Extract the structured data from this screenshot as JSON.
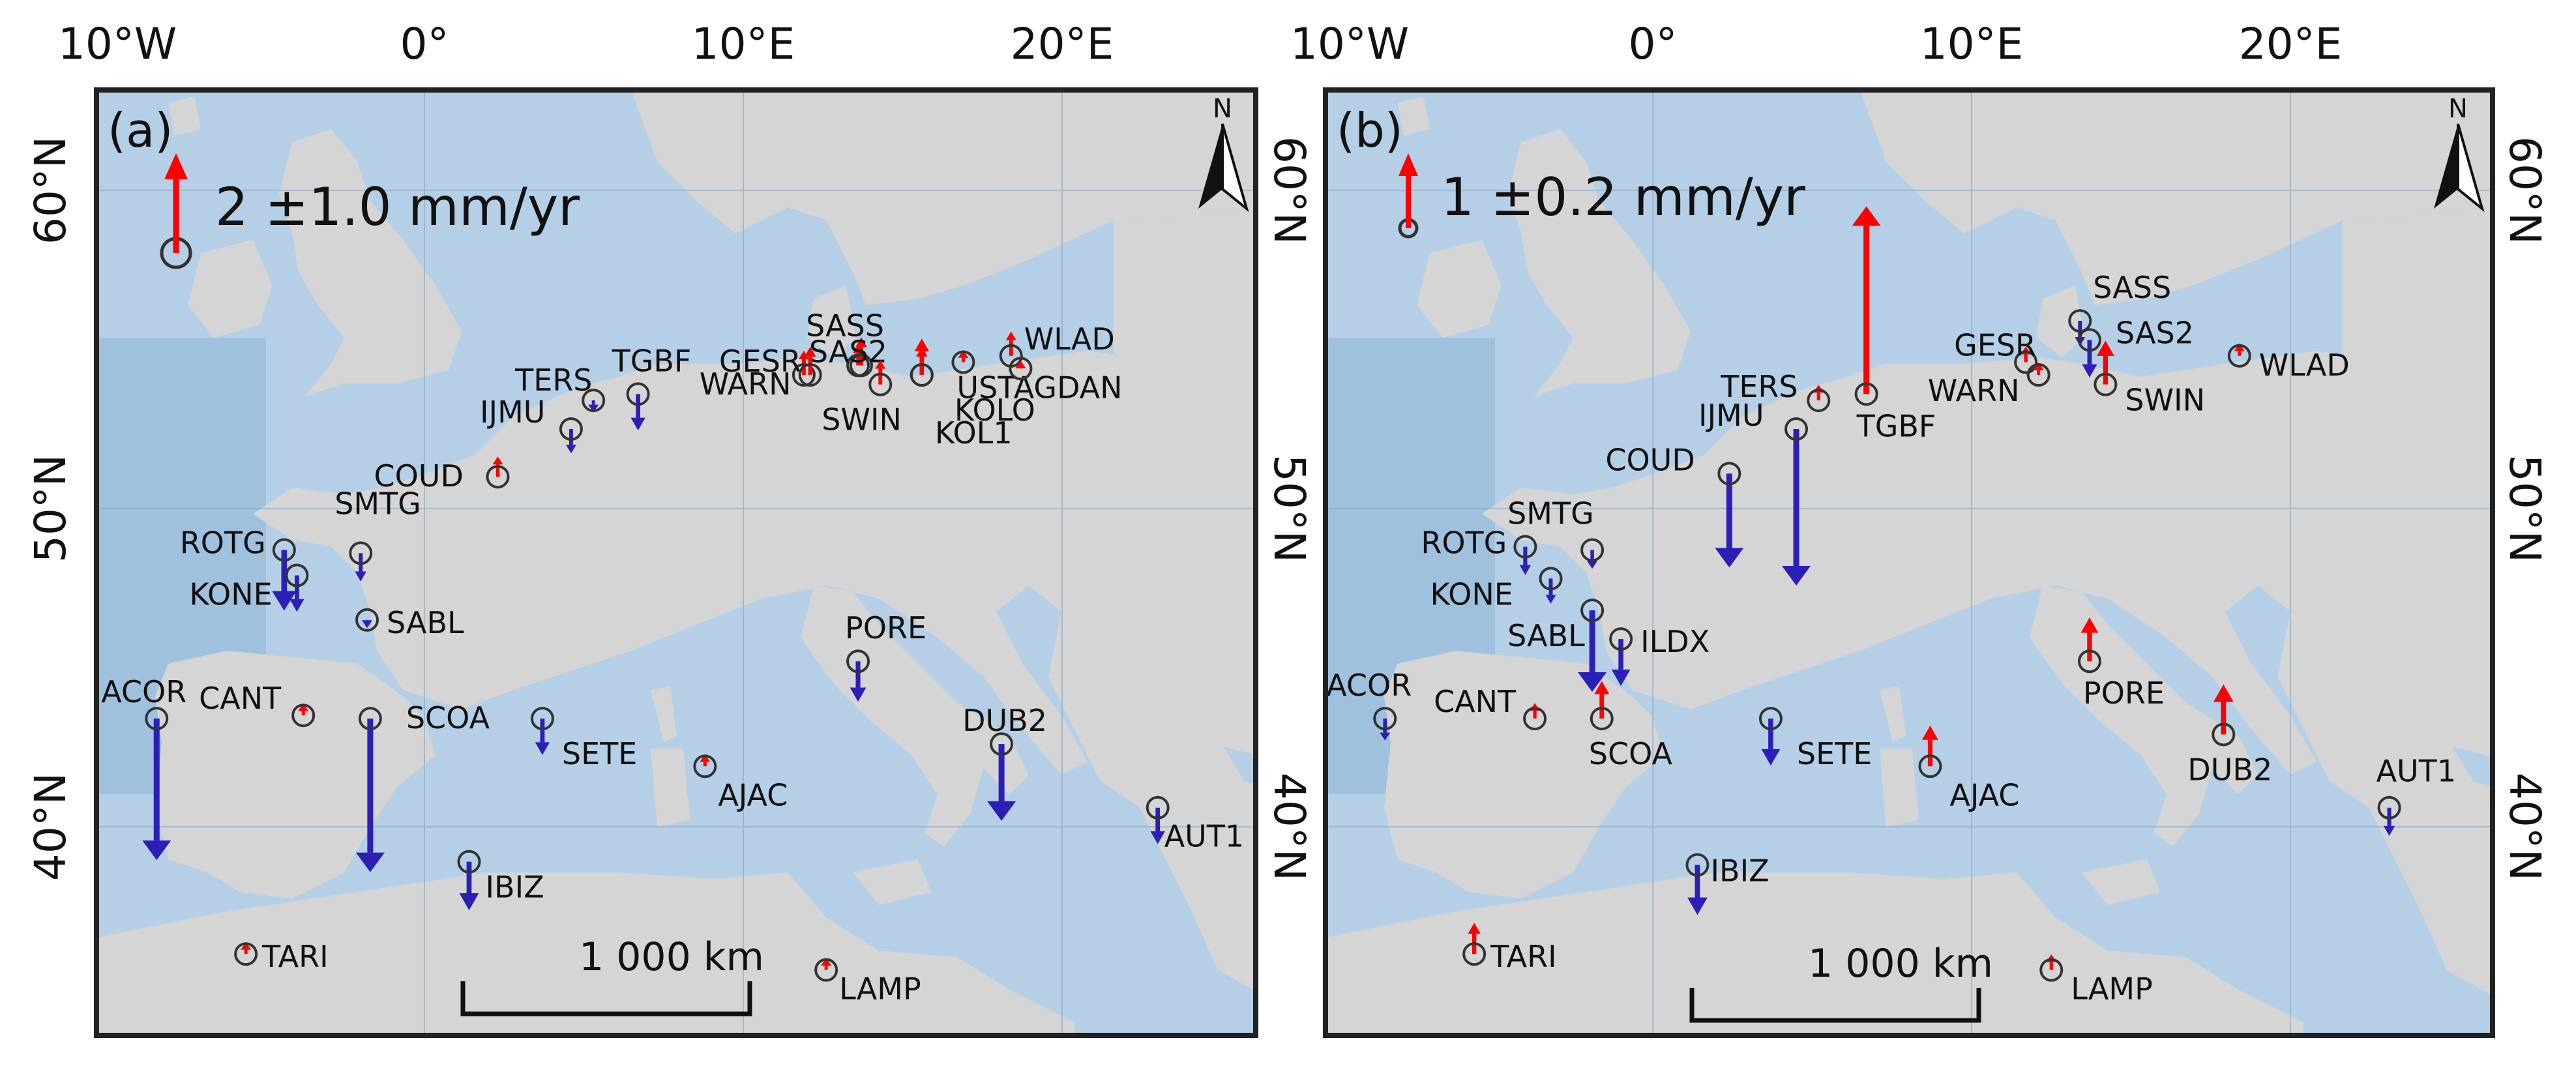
{
  "axes": {
    "lon_labels": [
      "10°W",
      "0°",
      "10°E",
      "20°E"
    ],
    "lat_labels": [
      "60°N",
      "50°N",
      "40°N"
    ]
  },
  "colors": {
    "uplift": "#ff0000",
    "subsidence": "#2b1fb8",
    "sea": "#b5d0e6",
    "land": "#d5d5d5",
    "frame": "#222222"
  },
  "panels": [
    {
      "label": "(a)",
      "legend": {
        "text": "2 ±1.0 mm/yr",
        "value": 2,
        "uncertainty": 1.0,
        "unit": "mm/yr"
      },
      "scalebar": "1 000 km",
      "north": "N",
      "stations": [
        {
          "name": "SASS",
          "lon": 13.6,
          "lat": 54.5,
          "rate": 0.5
        },
        {
          "name": "SAS2",
          "lon": 13.7,
          "lat": 54.5,
          "rate": 0.7
        },
        {
          "name": "GESR",
          "lon": 11.9,
          "lat": 54.2,
          "rate": 0.6
        },
        {
          "name": "WARN",
          "lon": 12.1,
          "lat": 54.2,
          "rate": 0.7
        },
        {
          "name": "TERS",
          "lon": 5.3,
          "lat": 53.4,
          "rate": -0.3
        },
        {
          "name": "TGBF",
          "lon": 6.7,
          "lat": 53.6,
          "rate": -0.9
        },
        {
          "name": "IJMU",
          "lon": 4.6,
          "lat": 52.5,
          "rate": -0.6
        },
        {
          "name": "SWIN",
          "lon": 14.3,
          "lat": 53.9,
          "rate": 0.6
        },
        {
          "name": "KOLO",
          "lon": 15.6,
          "lat": 54.2,
          "rate": 0.9
        },
        {
          "name": "KOL1",
          "lon": 15.6,
          "lat": 54.2,
          "rate": 0.7
        },
        {
          "name": "USTA",
          "lon": 16.9,
          "lat": 54.6,
          "rate": 0.3
        },
        {
          "name": "WLAD",
          "lon": 18.4,
          "lat": 54.8,
          "rate": 0.6
        },
        {
          "name": "GDAN",
          "lon": 18.7,
          "lat": 54.4,
          "rate": 0.2
        },
        {
          "name": "COUD",
          "lon": 2.3,
          "lat": 51.0,
          "rate": 0.5
        },
        {
          "name": "SMTG",
          "lon": -2.0,
          "lat": 48.6,
          "rate": -0.7
        },
        {
          "name": "ROTG",
          "lon": -4.4,
          "lat": 48.7,
          "rate": -1.5
        },
        {
          "name": "KONE",
          "lon": -4.0,
          "lat": 47.9,
          "rate": -0.9
        },
        {
          "name": "SABL",
          "lon": -1.8,
          "lat": 46.5,
          "rate": -0.2
        },
        {
          "name": "PORE",
          "lon": 13.6,
          "lat": 45.2,
          "rate": -1.0
        },
        {
          "name": "ACOR",
          "lon": -8.4,
          "lat": 43.4,
          "rate": -3.5
        },
        {
          "name": "CANT",
          "lon": -3.8,
          "lat": 43.5,
          "rate": 0.3
        },
        {
          "name": "SCOA",
          "lon": -1.7,
          "lat": 43.4,
          "rate": -3.8
        },
        {
          "name": "SETE",
          "lon": 3.7,
          "lat": 43.4,
          "rate": -0.9
        },
        {
          "name": "DUB2",
          "lon": 18.1,
          "lat": 42.6,
          "rate": -1.9
        },
        {
          "name": "AJAC",
          "lon": 8.8,
          "lat": 41.9,
          "rate": 0.3
        },
        {
          "name": "AUT1",
          "lon": 23.0,
          "lat": 40.6,
          "rate": -0.9
        },
        {
          "name": "IBIZ",
          "lon": 1.4,
          "lat": 38.9,
          "rate": -1.2
        },
        {
          "name": "TARI",
          "lon": -5.6,
          "lat": 36.0,
          "rate": 0.3
        },
        {
          "name": "LAMP",
          "lon": 12.6,
          "lat": 35.5,
          "rate": 0.3
        }
      ]
    },
    {
      "label": "(b)",
      "legend": {
        "text": "1 ±0.2 mm/yr",
        "value": 1,
        "uncertainty": 0.2,
        "unit": "mm/yr"
      },
      "scalebar": "1 000 km",
      "north": "N",
      "stations": [
        {
          "name": "SASS",
          "lon": 13.4,
          "lat": 55.9,
          "rate": -0.8
        },
        {
          "name": "SAS2",
          "lon": 13.7,
          "lat": 55.3,
          "rate": -1.2
        },
        {
          "name": "GESR",
          "lon": 11.7,
          "lat": 54.6,
          "rate": 0.5
        },
        {
          "name": "WARN",
          "lon": 12.1,
          "lat": 54.2,
          "rate": 0.4
        },
        {
          "name": "SWIN",
          "lon": 14.2,
          "lat": 53.9,
          "rate": 1.4
        },
        {
          "name": "WLAD",
          "lon": 18.4,
          "lat": 54.8,
          "rate": 0.4
        },
        {
          "name": "TERS",
          "lon": 5.2,
          "lat": 53.4,
          "rate": 0.5
        },
        {
          "name": "TGBF",
          "lon": 6.7,
          "lat": 53.6,
          "rate": 6.0
        },
        {
          "name": "IJMU",
          "lon": 4.5,
          "lat": 52.5,
          "rate": -5.0
        },
        {
          "name": "COUD",
          "lon": 2.4,
          "lat": 51.1,
          "rate": -3.0
        },
        {
          "name": "SMTG",
          "lon": -1.9,
          "lat": 48.7,
          "rate": -0.6
        },
        {
          "name": "ROTG",
          "lon": -4.0,
          "lat": 48.8,
          "rate": -0.9
        },
        {
          "name": "KONE",
          "lon": -3.2,
          "lat": 47.8,
          "rate": -0.8
        },
        {
          "name": "SABL",
          "lon": -1.9,
          "lat": 46.8,
          "rate": -2.6
        },
        {
          "name": "ILDX",
          "lon": -1.0,
          "lat": 45.9,
          "rate": -1.5
        },
        {
          "name": "PORE",
          "lon": 13.7,
          "lat": 45.2,
          "rate": 1.4
        },
        {
          "name": "ACOR",
          "lon": -8.4,
          "lat": 43.4,
          "rate": -0.7
        },
        {
          "name": "CANT",
          "lon": -3.7,
          "lat": 43.4,
          "rate": 0.5
        },
        {
          "name": "SCOA",
          "lon": -1.6,
          "lat": 43.4,
          "rate": 1.2
        },
        {
          "name": "SETE",
          "lon": 3.7,
          "lat": 43.4,
          "rate": -1.5
        },
        {
          "name": "DUB2",
          "lon": 17.9,
          "lat": 42.9,
          "rate": 1.6
        },
        {
          "name": "AJAC",
          "lon": 8.7,
          "lat": 41.9,
          "rate": 1.3
        },
        {
          "name": "AUT1",
          "lon": 23.1,
          "lat": 40.6,
          "rate": -0.9
        },
        {
          "name": "IBIZ",
          "lon": 1.4,
          "lat": 38.8,
          "rate": -1.6
        },
        {
          "name": "TARI",
          "lon": -5.6,
          "lat": 36.0,
          "rate": 1.0
        },
        {
          "name": "LAMP",
          "lon": 12.5,
          "lat": 35.5,
          "rate": 0.5
        }
      ]
    }
  ]
}
